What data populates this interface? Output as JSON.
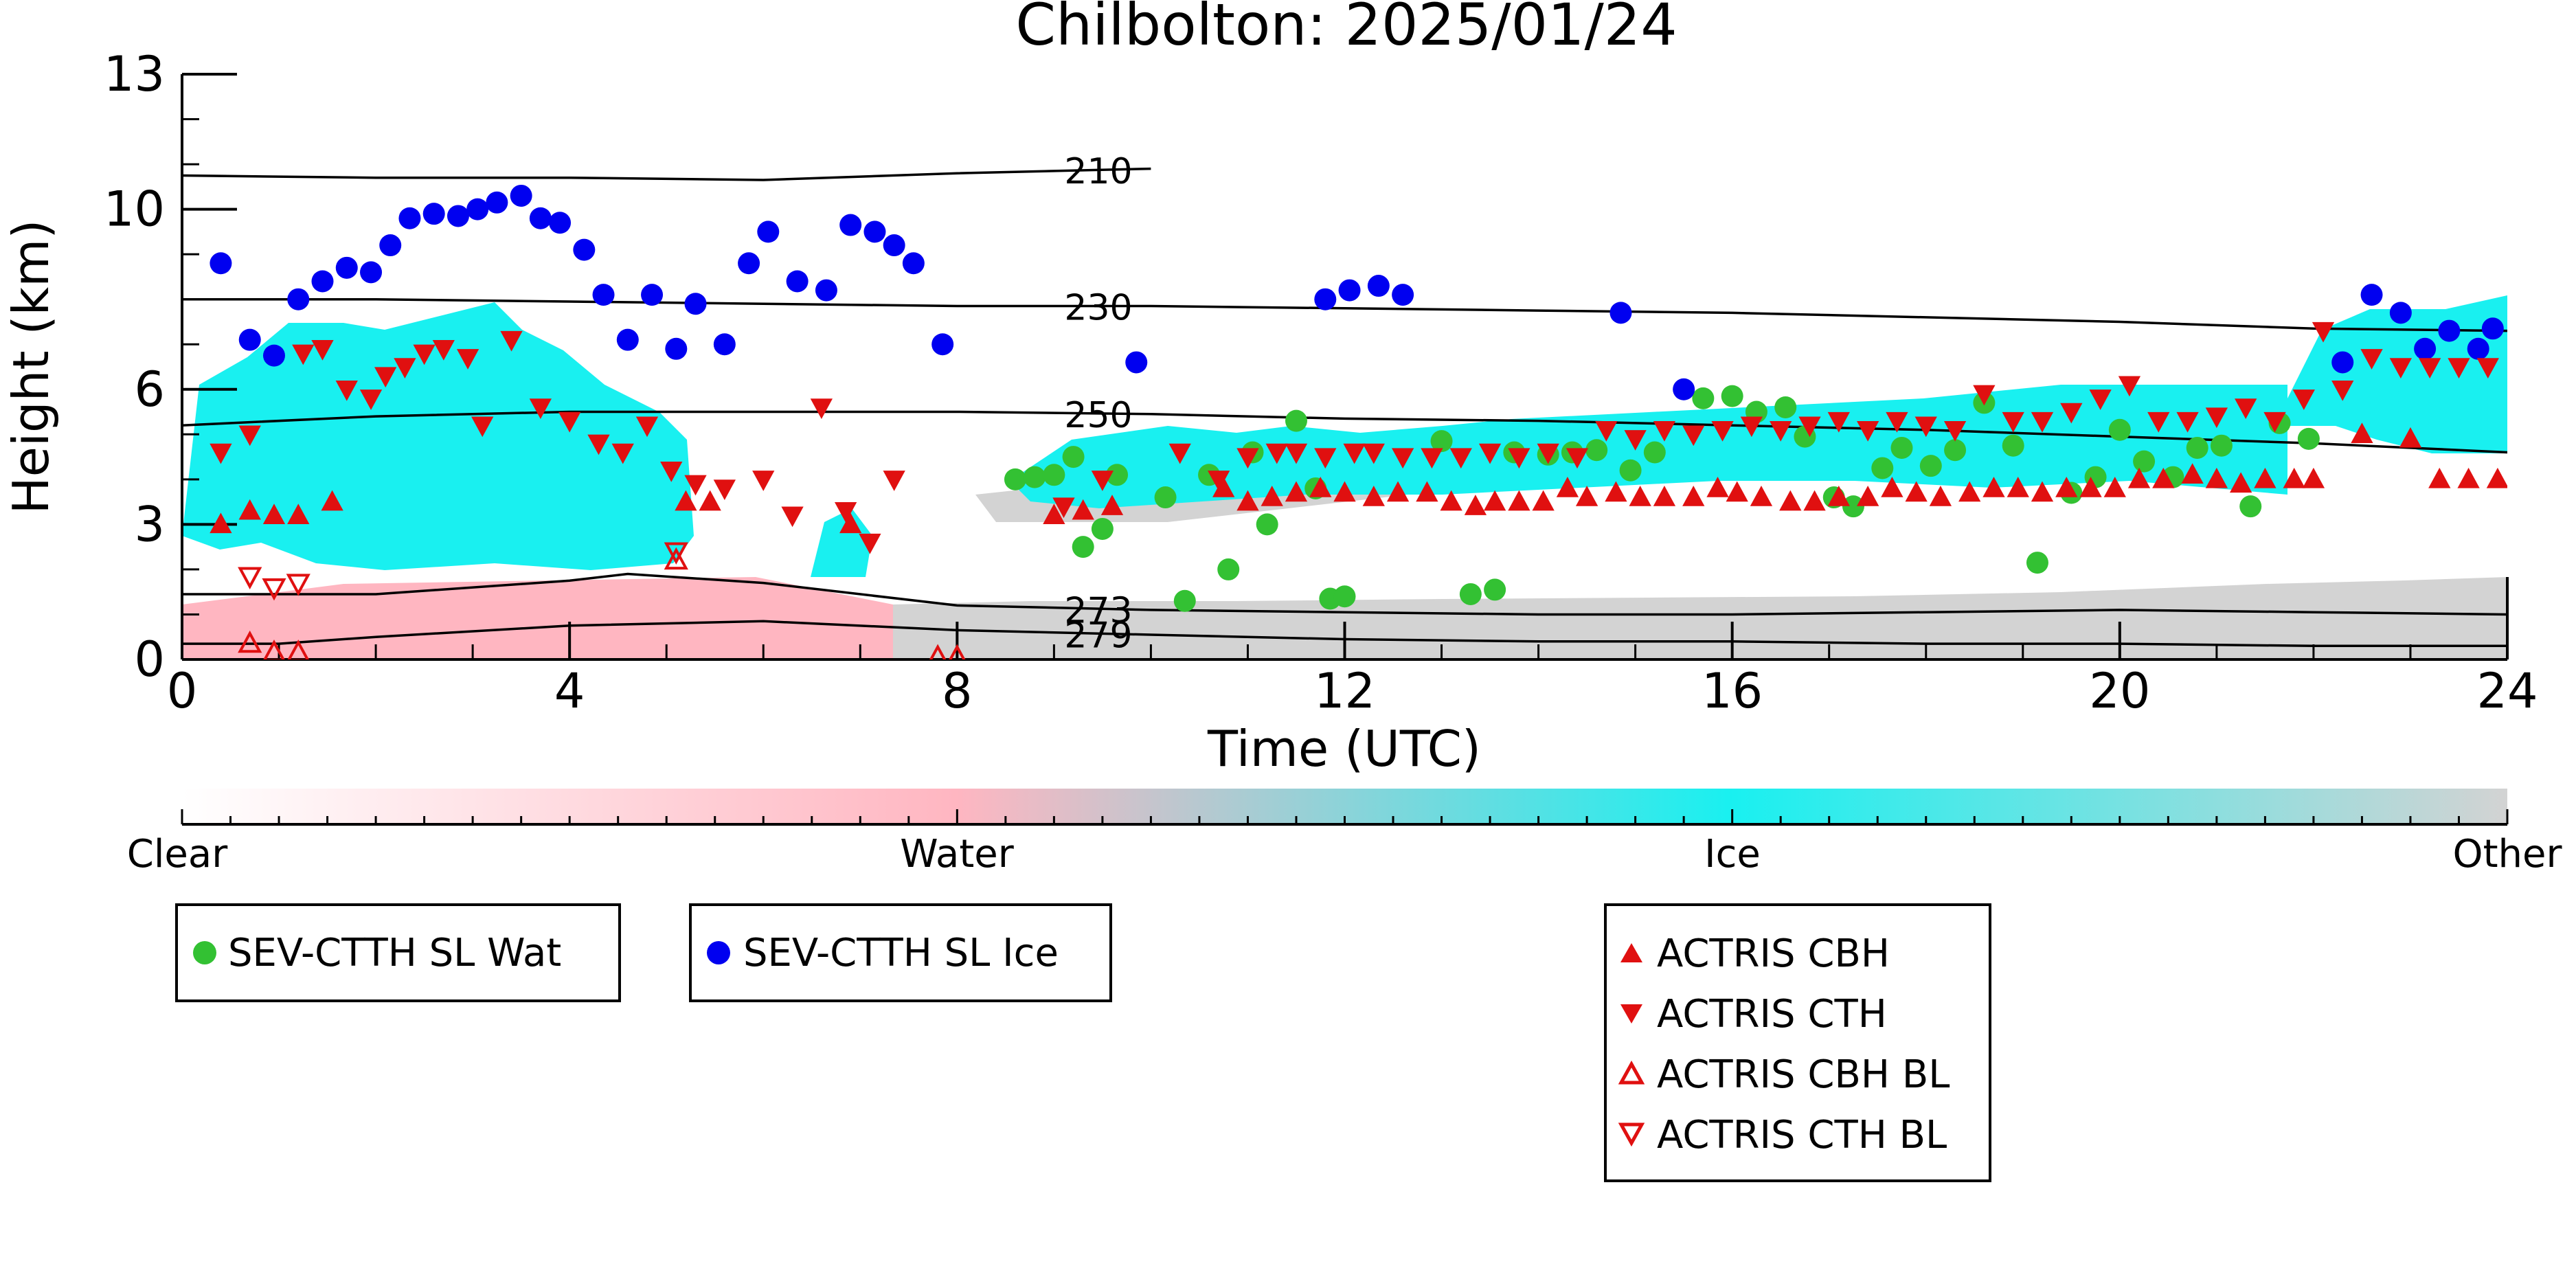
{
  "chart_data": {
    "type": "scatter",
    "title": "Chilbolton: 2025/01/24",
    "xlabel": "Time (UTC)",
    "ylabel": "Height (km)",
    "xlim": [
      0,
      24
    ],
    "ylim": [
      0,
      13
    ],
    "x_ticks": [
      "0",
      "4",
      "8",
      "12",
      "16",
      "20",
      "24"
    ],
    "y_ticks": [
      "0",
      "3",
      "6",
      "10",
      "13"
    ],
    "colorbar": {
      "labels": [
        "Clear",
        "Water",
        "Ice",
        "Other"
      ],
      "colors": [
        "#ffffff",
        "#ffb6c1",
        "#19f0f0",
        "#d3d3d3"
      ]
    },
    "contours": [
      {
        "label": "210",
        "x": [
          0,
          2,
          4,
          6,
          8,
          10,
          10.0
        ],
        "y": [
          10.75,
          10.7,
          10.7,
          10.65,
          10.8,
          10.9,
          10.9
        ]
      },
      {
        "label": "230",
        "x": [
          0,
          2,
          4,
          6,
          8,
          10,
          12,
          14,
          16,
          18,
          20,
          22,
          24
        ],
        "y": [
          8.0,
          8.0,
          7.95,
          7.9,
          7.85,
          7.85,
          7.8,
          7.75,
          7.7,
          7.6,
          7.5,
          7.35,
          7.3
        ]
      },
      {
        "label": "250",
        "x": [
          0,
          2,
          4,
          6,
          8,
          10,
          12,
          14,
          16,
          18,
          20,
          22,
          24
        ],
        "y": [
          5.2,
          5.4,
          5.5,
          5.5,
          5.5,
          5.45,
          5.35,
          5.3,
          5.2,
          5.1,
          4.95,
          4.8,
          4.6
        ]
      },
      {
        "label": "273",
        "x": [
          0,
          2,
          4,
          4.6,
          6,
          8,
          10,
          12,
          14,
          16,
          18,
          20,
          22,
          24
        ],
        "y": [
          1.45,
          1.45,
          1.75,
          1.9,
          1.7,
          1.2,
          1.1,
          1.05,
          1.0,
          1.0,
          1.05,
          1.1,
          1.05,
          1.0
        ]
      },
      {
        "label": "279",
        "x": [
          0,
          1,
          2,
          4,
          6,
          8,
          10,
          12,
          14,
          16,
          18,
          20,
          22,
          24
        ],
        "y": [
          0.35,
          0.35,
          0.5,
          0.75,
          0.85,
          0.65,
          0.55,
          0.45,
          0.4,
          0.4,
          0.35,
          0.35,
          0.3,
          0.3
        ]
      }
    ],
    "series": [
      {
        "name": "SEV-CTTH SL Wat",
        "color": "#33c133",
        "marker": "circle",
        "x": [
          8.6,
          8.8,
          9.0,
          9.2,
          9.3,
          9.5,
          9.65,
          10.15,
          10.35,
          10.6,
          10.8,
          11.05,
          11.2,
          11.5,
          11.7,
          11.85,
          12.0,
          13.0,
          13.3,
          13.55,
          13.75,
          14.1,
          14.35,
          14.6,
          14.95,
          15.2,
          15.7,
          16.0,
          16.25,
          16.55,
          16.75,
          17.05,
          17.25,
          17.55,
          17.75,
          18.05,
          18.3,
          18.6,
          18.9,
          19.15,
          19.5,
          19.75,
          20.0,
          20.25,
          20.55,
          20.8,
          21.05,
          21.35,
          21.65,
          21.95
        ],
        "y": [
          4.0,
          4.05,
          4.1,
          4.5,
          2.5,
          2.9,
          4.1,
          3.6,
          1.3,
          4.1,
          2.0,
          4.6,
          3.0,
          5.3,
          3.8,
          1.35,
          1.4,
          4.85,
          1.45,
          1.55,
          4.6,
          4.55,
          4.6,
          4.65,
          4.2,
          4.6,
          5.8,
          5.85,
          5.5,
          5.6,
          4.95,
          3.6,
          3.4,
          4.25,
          4.7,
          4.3,
          4.65,
          5.7,
          4.75,
          2.15,
          3.7,
          4.05,
          5.1,
          4.4,
          4.05,
          4.7,
          4.75,
          3.4,
          5.25,
          4.9
        ]
      },
      {
        "name": "SEV-CTTH SL Ice",
        "color": "#0000f0",
        "marker": "circle",
        "x": [
          0.4,
          0.7,
          0.95,
          1.2,
          1.45,
          1.7,
          1.95,
          2.15,
          2.35,
          2.6,
          2.85,
          3.05,
          3.25,
          3.5,
          3.7,
          3.9,
          4.15,
          4.35,
          4.6,
          4.85,
          5.1,
          5.3,
          5.6,
          5.85,
          6.05,
          6.35,
          6.65,
          6.9,
          7.15,
          7.35,
          7.55,
          7.85,
          9.85,
          11.8,
          12.05,
          12.35,
          12.6,
          14.85,
          15.5,
          22.3,
          22.6,
          22.9,
          23.15,
          23.4,
          23.7,
          23.85
        ],
        "y": [
          8.8,
          7.1,
          6.75,
          8.0,
          8.4,
          8.7,
          8.6,
          9.2,
          9.8,
          9.9,
          9.85,
          10.0,
          10.15,
          10.3,
          9.8,
          9.7,
          9.1,
          8.1,
          7.1,
          8.1,
          6.9,
          7.9,
          7.0,
          8.8,
          9.5,
          8.4,
          8.2,
          9.65,
          9.5,
          9.2,
          8.8,
          7.0,
          6.6,
          8.0,
          8.2,
          8.3,
          8.1,
          7.7,
          6.0,
          6.6,
          8.1,
          7.7,
          6.9,
          7.3,
          6.9,
          7.35
        ]
      },
      {
        "name": "ACTRIS CBH",
        "color": "#e01010",
        "marker": "triangle-up",
        "x": [
          0.4,
          0.7,
          0.95,
          1.2,
          1.55,
          5.2,
          5.45,
          6.9,
          9.0,
          9.3,
          9.6,
          10.75,
          11.0,
          11.25,
          11.5,
          11.75,
          12.0,
          12.3,
          12.55,
          12.85,
          13.1,
          13.35,
          13.55,
          13.8,
          14.05,
          14.3,
          14.5,
          14.8,
          15.05,
          15.3,
          15.6,
          15.85,
          16.05,
          16.3,
          16.6,
          16.85,
          17.1,
          17.4,
          17.65,
          17.9,
          18.15,
          18.45,
          18.7,
          18.95,
          19.2,
          19.45,
          19.7,
          19.95,
          20.2,
          20.45,
          20.75,
          21.0,
          21.25,
          21.5,
          21.8,
          22.0,
          22.5,
          23.0,
          23.3,
          23.6,
          23.9
        ],
        "y": [
          3.0,
          3.3,
          3.2,
          3.2,
          3.5,
          3.5,
          3.5,
          3.0,
          3.2,
          3.3,
          3.4,
          3.8,
          3.5,
          3.6,
          3.7,
          3.8,
          3.7,
          3.6,
          3.7,
          3.7,
          3.5,
          3.4,
          3.5,
          3.5,
          3.5,
          3.8,
          3.6,
          3.7,
          3.6,
          3.6,
          3.6,
          3.8,
          3.7,
          3.6,
          3.5,
          3.5,
          3.6,
          3.6,
          3.8,
          3.7,
          3.6,
          3.7,
          3.8,
          3.8,
          3.7,
          3.8,
          3.8,
          3.8,
          4.0,
          4.0,
          4.1,
          4.0,
          3.9,
          4.0,
          4.0,
          4.0,
          5.0,
          4.9,
          4.0,
          4.0,
          4.0
        ]
      },
      {
        "name": "ACTRIS CTH",
        "color": "#e01010",
        "marker": "triangle-down",
        "x": [
          0.4,
          0.7,
          1.25,
          1.45,
          1.7,
          1.95,
          2.1,
          2.3,
          2.5,
          2.7,
          2.95,
          3.1,
          3.4,
          3.7,
          4.0,
          4.3,
          4.55,
          4.8,
          5.05,
          5.3,
          5.6,
          6.0,
          6.3,
          6.6,
          6.85,
          7.1,
          7.35,
          9.1,
          9.5,
          10.3,
          10.7,
          11.0,
          11.3,
          11.5,
          11.8,
          12.1,
          12.3,
          12.6,
          12.9,
          13.2,
          13.5,
          13.8,
          14.1,
          14.4,
          14.7,
          15.0,
          15.3,
          15.6,
          15.9,
          16.2,
          16.5,
          16.8,
          17.1,
          17.4,
          17.7,
          18.0,
          18.3,
          18.6,
          18.9,
          19.2,
          19.5,
          19.8,
          20.1,
          20.4,
          20.7,
          21.0,
          21.3,
          21.6,
          21.9,
          22.1,
          22.3,
          22.6,
          22.9,
          23.2,
          23.5,
          23.8
        ],
        "y": [
          4.6,
          5.0,
          6.8,
          6.9,
          6.0,
          5.8,
          6.3,
          6.5,
          6.8,
          6.9,
          6.7,
          5.2,
          7.1,
          5.6,
          5.3,
          4.8,
          4.6,
          5.2,
          4.2,
          3.9,
          3.8,
          4.0,
          3.2,
          5.6,
          3.3,
          2.6,
          4.0,
          3.4,
          4.0,
          4.6,
          4.0,
          4.5,
          4.6,
          4.6,
          4.5,
          4.6,
          4.6,
          4.5,
          4.5,
          4.5,
          4.6,
          4.5,
          4.6,
          4.5,
          5.1,
          4.9,
          5.1,
          5.0,
          5.1,
          5.2,
          5.1,
          5.2,
          5.3,
          5.1,
          5.3,
          5.2,
          5.1,
          5.9,
          5.3,
          5.3,
          5.5,
          5.8,
          6.1,
          5.3,
          5.3,
          5.4,
          5.6,
          5.3,
          5.8,
          7.3,
          6.0,
          6.7,
          6.5,
          6.5,
          6.5,
          6.5
        ]
      },
      {
        "name": "ACTRIS CBH BL",
        "color": "#e01010",
        "marker": "triangle-up-open",
        "x": [
          0.7,
          0.95,
          1.2,
          5.1,
          7.8,
          8.0
        ],
        "y": [
          0.35,
          0.15,
          0.15,
          2.2,
          0.05,
          0.05
        ]
      },
      {
        "name": "ACTRIS CTH BL",
        "color": "#e01010",
        "marker": "triangle-down-open",
        "x": [
          0.7,
          0.95,
          1.2,
          5.1
        ],
        "y": [
          1.85,
          1.6,
          1.7,
          2.4
        ]
      }
    ]
  }
}
